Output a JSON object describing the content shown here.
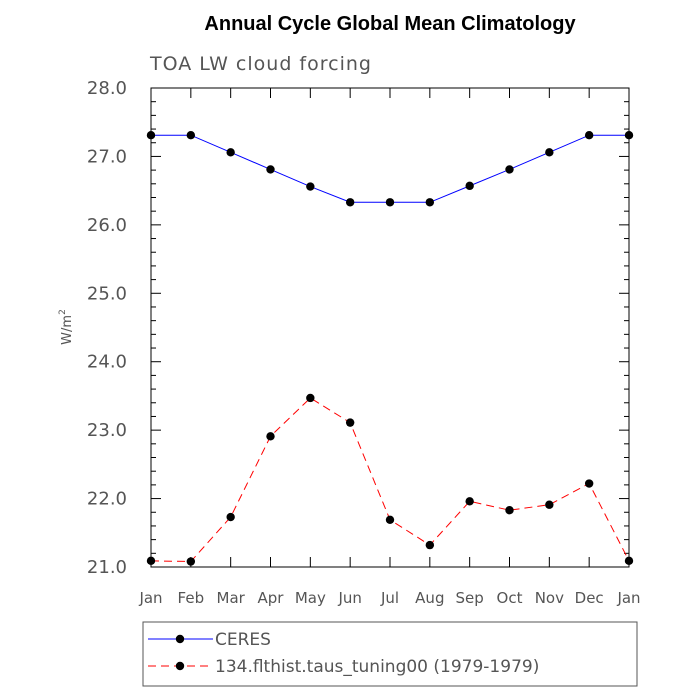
{
  "chart_data": {
    "type": "line",
    "title": "Annual Cycle Global Mean Climatology",
    "subtitle": "TOA LW cloud forcing",
    "ylabel_base": "W/m",
    "ylabel_sup": "2",
    "xlabel": "",
    "ylim": [
      21.0,
      28.0
    ],
    "yticks": [
      "21.0",
      "22.0",
      "23.0",
      "24.0",
      "25.0",
      "26.0",
      "27.0",
      "28.0"
    ],
    "categories": [
      "Jan",
      "Feb",
      "Mar",
      "Apr",
      "May",
      "Jun",
      "Jul",
      "Aug",
      "Sep",
      "Oct",
      "Nov",
      "Dec",
      "Jan"
    ],
    "grid": false,
    "legend_position": "bottom",
    "series": [
      {
        "name": "CERES",
        "color": "#0000ff",
        "dash": "solid",
        "values": [
          27.31,
          27.31,
          27.06,
          26.81,
          26.56,
          26.33,
          26.33,
          26.33,
          26.57,
          26.81,
          27.06,
          27.31,
          27.31
        ]
      },
      {
        "name": "134.flthist.taus_tuning00 (1979-1979)",
        "color": "#ff0000",
        "dash": "dashed",
        "values": [
          21.09,
          21.08,
          21.73,
          22.91,
          23.47,
          23.11,
          21.69,
          21.32,
          21.96,
          21.83,
          21.91,
          22.22,
          21.09
        ]
      }
    ]
  }
}
